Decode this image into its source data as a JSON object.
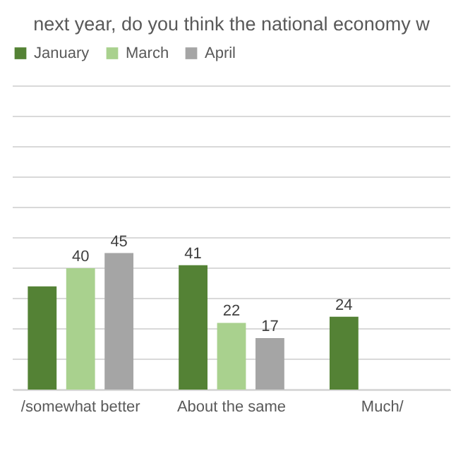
{
  "chart_data": {
    "type": "bar",
    "title": "next year, do you think the national economy w",
    "categories": [
      "/somewhat better",
      "About the same",
      "Much/"
    ],
    "series": [
      {
        "name": "January",
        "color": "#548235",
        "values": [
          34,
          41,
          24
        ],
        "value_labels": [
          null,
          "41",
          "24"
        ]
      },
      {
        "name": "March",
        "color": "#a9d18e",
        "values": [
          40,
          22,
          null
        ],
        "value_labels": [
          "40",
          "22",
          null
        ]
      },
      {
        "name": "April",
        "color": "#a5a5a5",
        "values": [
          45,
          17,
          null
        ],
        "value_labels": [
          "45",
          "17",
          null
        ]
      }
    ],
    "ylim": [
      0,
      100
    ],
    "yticks": [
      0,
      10,
      20,
      30,
      40,
      50,
      60,
      70,
      80,
      90,
      100
    ],
    "grid": "y",
    "legend": "top",
    "tick_labels": "x"
  }
}
